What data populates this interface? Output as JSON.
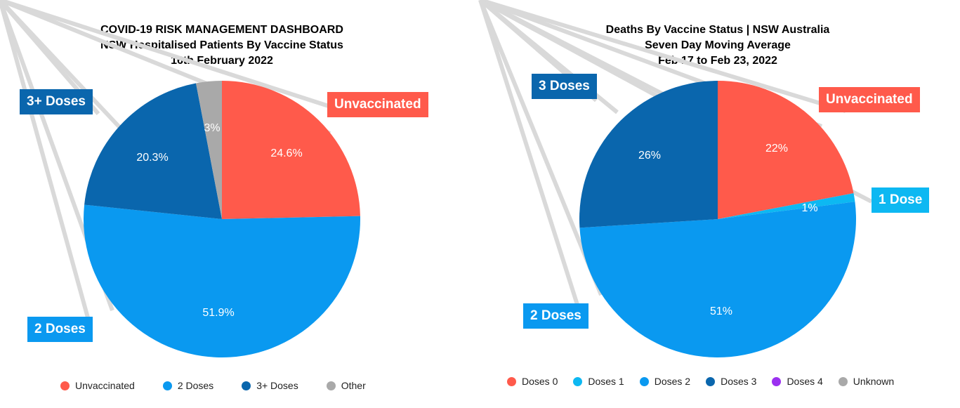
{
  "colors": {
    "unvaccinated": "#FF5A4B",
    "dose1": "#0DB8F2",
    "dose2": "#0A99F0",
    "dose3": "#0A66AD",
    "dose4": "#9B30F0",
    "other": "#A9A9A9",
    "leader": "#D9D9D9"
  },
  "chart_data": [
    {
      "type": "pie",
      "title": "COVID-19 RISK MANAGEMENT DASHBOARD",
      "subtitle": "NSW Hospitalised Patients By Vaccine Status",
      "date": "16th February 2022",
      "categories": [
        "Unvaccinated",
        "2 Doses",
        "3+ Doses",
        "Other"
      ],
      "values": [
        24.6,
        51.9,
        20.3,
        3
      ],
      "value_labels": [
        "24.6%",
        "51.9%",
        "20.3%",
        "3%"
      ],
      "callouts": [
        "Unvaccinated",
        "2 Doses",
        "3+ Doses"
      ],
      "legend": [
        "Unvaccinated",
        "2 Doses",
        "3+ Doses",
        "Other"
      ],
      "legend_placement": "bottom"
    },
    {
      "type": "pie",
      "title": "Deaths By Vaccine Status | NSW Australia",
      "subtitle": "Seven Day Moving Average",
      "date": "Feb 17 to Feb 23, 2022",
      "categories": [
        "Doses 0",
        "Doses 1",
        "Doses 2",
        "Doses 3",
        "Doses 4",
        "Unknown"
      ],
      "values": [
        22,
        1,
        51,
        26,
        0,
        0
      ],
      "value_labels": [
        "22%",
        "1%",
        "51%",
        "26%",
        "",
        ""
      ],
      "callouts": [
        "Unvaccinated",
        "1 Dose",
        "2 Doses",
        "3 Doses"
      ],
      "legend": [
        "Doses 0",
        "Doses 1",
        "Doses 2",
        "Doses 3",
        "Doses 4",
        "Unknown"
      ],
      "legend_placement": "bottom"
    }
  ]
}
